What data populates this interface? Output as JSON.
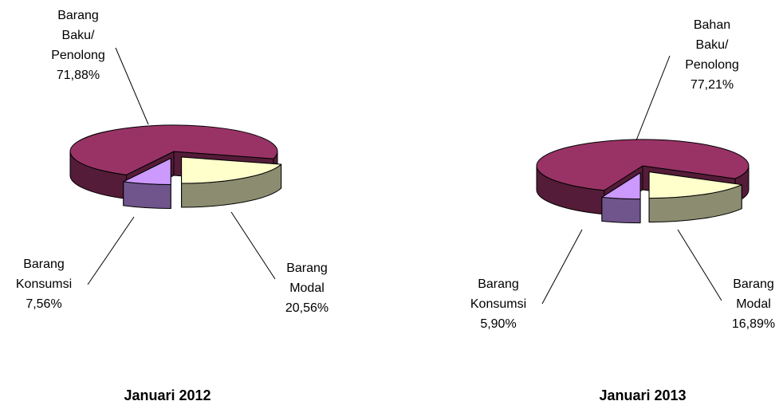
{
  "chart_data": [
    {
      "type": "pie",
      "title": "Januari 2012",
      "categories": [
        "Barang Baku/ Penolong",
        "Barang Modal",
        "Barang Konsumsi"
      ],
      "values": [
        71.88,
        20.56,
        7.56
      ],
      "value_labels": [
        "71,88%",
        "20,56%",
        "7,56%"
      ],
      "colors": [
        "#993366",
        "#ffffcc",
        "#cc99ff"
      ]
    },
    {
      "type": "pie",
      "title": "Januari 2013",
      "categories": [
        "Bahan Baku/ Penolong",
        "Barang Modal",
        "Barang Konsumsi"
      ],
      "values": [
        77.21,
        16.89,
        5.9
      ],
      "value_labels": [
        "77,21%",
        "16,89%",
        "5,90%"
      ],
      "colors": [
        "#993366",
        "#ffffcc",
        "#cc99ff"
      ]
    }
  ]
}
